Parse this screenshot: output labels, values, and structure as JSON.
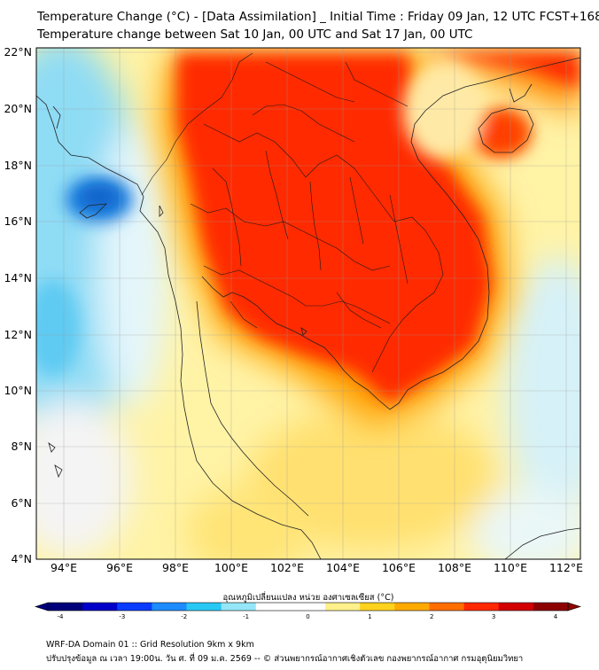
{
  "header": {
    "title_line1": "Temperature Change (°C) - [Data Assimilation] _ Initial Time : Friday 09 Jan, 12 UTC FCST+168",
    "title_line2": "Temperature change between Sat 10 Jan, 00 UTC and Sat 17 Jan, 00 UTC"
  },
  "map": {
    "lat_labels": [
      "22°N",
      "20°N",
      "18°N",
      "16°N",
      "14°N",
      "12°N",
      "10°N",
      "8°N",
      "6°N",
      "4°N"
    ],
    "lat_values": [
      22,
      20,
      18,
      16,
      14,
      12,
      10,
      8,
      6,
      4
    ],
    "lon_labels": [
      "94°E",
      "96°E",
      "98°E",
      "100°E",
      "102°E",
      "104°E",
      "106°E",
      "108°E",
      "110°E",
      "112°E"
    ],
    "lon_values": [
      94,
      96,
      98,
      100,
      102,
      104,
      106,
      108,
      110,
      112
    ],
    "lat_range": [
      4,
      22.2
    ],
    "lon_range": [
      93,
      112.5
    ]
  },
  "colorbar": {
    "label": "อุณหภูมิเปลี่ยนแปลง หน่วย องศาเซลเซียส (°C)",
    "ticks": [
      "-4",
      "-3",
      "-2",
      "-1",
      "0",
      "1",
      "2",
      "3",
      "4"
    ],
    "tick_values": [
      -4,
      -3,
      -2,
      -1,
      0,
      1,
      2,
      3,
      4
    ],
    "colors": [
      "#00007a",
      "#0000c8",
      "#0a3cff",
      "#1e8cff",
      "#28c8f5",
      "#96e6fa",
      "#ffffff",
      "#ffffff",
      "#fff08c",
      "#ffd21e",
      "#ffaa00",
      "#ff6e00",
      "#ff2800",
      "#d20000",
      "#8c0000"
    ]
  },
  "footer": {
    "line1": "WRF-DA Domain 01 :: Grid Resolution 9km x 9km",
    "line2": "ปรับปรุงข้อมูล ณ เวลา 19:00น. วัน ศ. ที่ 09 ม.ค. 2569 -- © ส่วนพยากรณ์อากาศเชิงตัวเลข กองพยากรณ์อากาศ กรมอุตุนิยมวิทยา"
  }
}
